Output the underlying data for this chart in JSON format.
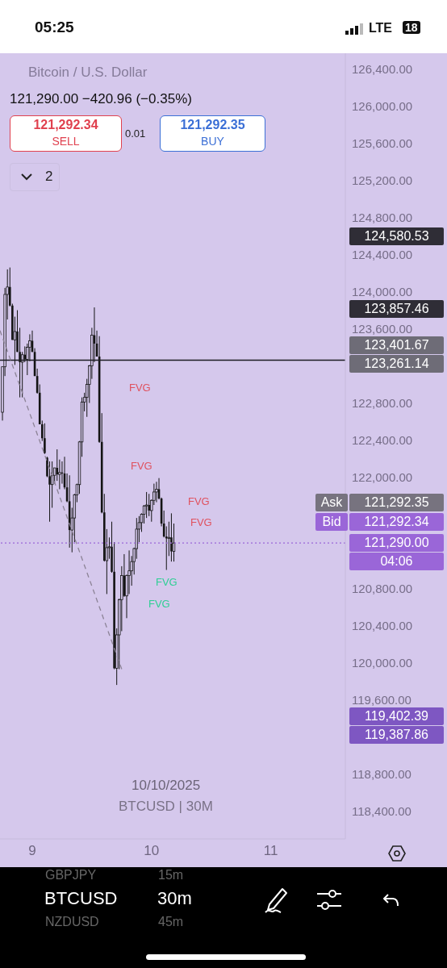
{
  "chart_data": {
    "type": "candlestick",
    "title": "Bitcoin / U.S. Dollar",
    "subtitle": "121,290.00 −420.96 (−0.35%)",
    "color": "#141414",
    "x": [
      "2025-10-08T18:00",
      "2025-10-08T18:30",
      "2025-10-08T19:00",
      "2025-10-08T19:30",
      "2025-10-08T20:00",
      "2025-10-08T20:30",
      "2025-10-08T21:00",
      "2025-10-08T21:30",
      "2025-10-08T22:00",
      "2025-10-08T22:30",
      "2025-10-08T23:00",
      "2025-10-08T23:30",
      "2025-10-09T00:00",
      "2025-10-09T00:30",
      "2025-10-09T01:00",
      "2025-10-09T01:30",
      "2025-10-09T02:00",
      "2025-10-09T02:30",
      "2025-10-09T03:00",
      "2025-10-09T03:30",
      "2025-10-09T04:00",
      "2025-10-09T04:30",
      "2025-10-09T05:00",
      "2025-10-09T05:30",
      "2025-10-09T06:00",
      "2025-10-09T06:30",
      "2025-10-09T07:00",
      "2025-10-09T07:30",
      "2025-10-09T08:00",
      "2025-10-09T08:30",
      "2025-10-09T09:00",
      "2025-10-09T09:30",
      "2025-10-09T10:00",
      "2025-10-09T10:30",
      "2025-10-09T11:00",
      "2025-10-09T11:30",
      "2025-10-09T12:00",
      "2025-10-09T12:30",
      "2025-10-09T13:00",
      "2025-10-09T13:30",
      "2025-10-09T14:00",
      "2025-10-09T14:30",
      "2025-10-09T15:00",
      "2025-10-09T15:30",
      "2025-10-09T16:00",
      "2025-10-09T16:30",
      "2025-10-09T17:00",
      "2025-10-09T17:30",
      "2025-10-09T18:00",
      "2025-10-09T18:30",
      "2025-10-09T19:00",
      "2025-10-09T19:30",
      "2025-10-09T20:00",
      "2025-10-09T20:30",
      "2025-10-09T21:00",
      "2025-10-09T21:30",
      "2025-10-09T22:00",
      "2025-10-09T22:30",
      "2025-10-09T23:00",
      "2025-10-09T23:30",
      "2025-10-10T00:00",
      "2025-10-10T00:30",
      "2025-10-10T01:00",
      "2025-10-10T01:30",
      "2025-10-10T02:00",
      "2025-10-10T02:30",
      "2025-10-10T03:00",
      "2025-10-10T03:30",
      "2025-10-10T04:00",
      "2025-10-10T04:30"
    ],
    "ohlc": [
      [
        122700,
        123190,
        122610,
        123190
      ],
      [
        123190,
        124040,
        123090,
        123970
      ],
      [
        123970,
        124240,
        123700,
        124050
      ],
      [
        124050,
        124260,
        123840,
        123850
      ],
      [
        123850,
        123870,
        123480,
        123480
      ],
      [
        123480,
        123730,
        123210,
        123570
      ],
      [
        123570,
        123800,
        123350,
        123350
      ],
      [
        123350,
        123610,
        122860,
        123240
      ],
      [
        123240,
        123350,
        122860,
        123320
      ],
      [
        123320,
        123410,
        123240,
        123270
      ],
      [
        123270,
        123440,
        123100,
        123400
      ],
      [
        123400,
        123540,
        123250,
        123470
      ],
      [
        123470,
        123580,
        123350,
        123350
      ],
      [
        123350,
        123390,
        123090,
        123090
      ],
      [
        123090,
        123170,
        122900,
        122910
      ],
      [
        122910,
        123000,
        122570,
        122570
      ],
      [
        122570,
        122610,
        122390,
        122420
      ],
      [
        122420,
        122580,
        122250,
        122260
      ],
      [
        122210,
        122220,
        122000,
        122010
      ],
      [
        122010,
        122170,
        121520,
        121920
      ],
      [
        121920,
        122170,
        121670,
        122020
      ],
      [
        122020,
        122100,
        121930,
        122100
      ],
      [
        122100,
        122300,
        121960,
        122030
      ],
      [
        122030,
        122190,
        121870,
        122050
      ],
      [
        122050,
        122170,
        121930,
        122040
      ],
      [
        122040,
        122220,
        121870,
        121890
      ],
      [
        121890,
        122040,
        121730,
        121740
      ],
      [
        121740,
        122020,
        121240,
        121430
      ],
      [
        121430,
        121670,
        121190,
        121560
      ],
      [
        121560,
        121820,
        121300,
        121810
      ],
      [
        121810,
        121930,
        121730,
        121920
      ],
      [
        121920,
        122390,
        121820,
        122380
      ],
      [
        122380,
        122860,
        122220,
        122810
      ],
      [
        122810,
        122910,
        122710,
        122860
      ],
      [
        122860,
        123060,
        122650,
        123000
      ],
      [
        123000,
        123210,
        122800,
        123200
      ],
      [
        123200,
        123610,
        123060,
        123530
      ],
      [
        123530,
        123830,
        123240,
        123440
      ],
      [
        123440,
        123580,
        123300,
        123300
      ],
      [
        123300,
        123520,
        122370,
        122380
      ],
      [
        122380,
        122690,
        121610,
        121620
      ],
      [
        121620,
        121820,
        121090,
        121100
      ],
      [
        121100,
        121440,
        120740,
        121240
      ],
      [
        121240,
        121350,
        121120,
        121250
      ],
      [
        121250,
        121520,
        120970,
        120980
      ],
      [
        120980,
        121300,
        119930,
        119940
      ],
      [
        119940,
        120370,
        119760,
        120300
      ],
      [
        120300,
        120690,
        119930,
        120680
      ],
      [
        120680,
        121040,
        120340,
        120940
      ],
      [
        120940,
        121170,
        120710,
        120720
      ],
      [
        120720,
        120950,
        120480,
        120940
      ],
      [
        120940,
        121210,
        120740,
        120990
      ],
      [
        120990,
        121150,
        120830,
        121090
      ],
      [
        121090,
        121240,
        120950,
        121230
      ],
      [
        121230,
        121560,
        121120,
        121440
      ],
      [
        121440,
        121580,
        121300,
        121510
      ],
      [
        121510,
        121610,
        121410,
        121600
      ],
      [
        121600,
        121700,
        121500,
        121690
      ],
      [
        121690,
        121840,
        121560,
        121700
      ],
      [
        121700,
        121820,
        121580,
        121640
      ],
      [
        121640,
        121760,
        121520,
        121750
      ],
      [
        121750,
        121930,
        121700,
        121840
      ],
      [
        121840,
        121950,
        121730,
        121870
      ],
      [
        121870,
        121990,
        121760,
        121770
      ],
      [
        121770,
        121780,
        121470,
        121500
      ],
      [
        121500,
        121640,
        121350,
        121360
      ],
      [
        121360,
        121470,
        121000,
        121340
      ],
      [
        121340,
        121520,
        121150,
        121350
      ],
      [
        121350,
        121610,
        121090,
        121200
      ],
      [
        121200,
        121500,
        121090,
        121290
      ]
    ],
    "series": [
      {
        "type": "line",
        "x": [
          "2025-10-08T17:30",
          "2025-10-09T18:00"
        ],
        "values": [
          123580,
          119930
        ],
        "color": "#8c8396",
        "line_style": "dashed"
      }
    ],
    "xlim": [
      "2025-10-08T17:30",
      "2025-10-11T15:00"
    ],
    "xticks": [
      {
        "value": "2025-10-09",
        "label": "9"
      },
      {
        "value": "2025-10-10",
        "label": "10"
      },
      {
        "value": "2025-10-11",
        "label": "11"
      }
    ],
    "ylim": [
      118100,
      126570
    ],
    "yticks": [
      {
        "value": 118400,
        "label": "118,400.00"
      },
      {
        "value": 118800,
        "label": "118,800.00"
      },
      {
        "value": 119600,
        "label": "119,600.00"
      },
      {
        "value": 120000,
        "label": "120,000.00"
      },
      {
        "value": 120400,
        "label": "120,400.00"
      },
      {
        "value": 120800,
        "label": "120,800.00"
      },
      {
        "value": 122000,
        "label": "122,000.00"
      },
      {
        "value": 122400,
        "label": "122,400.00"
      },
      {
        "value": 122800,
        "label": "122,800.00"
      },
      {
        "value": 123600,
        "label": "123,600.00"
      },
      {
        "value": 124000,
        "label": "124,000.00"
      },
      {
        "value": 124400,
        "label": "124,400.00"
      },
      {
        "value": 124800,
        "label": "124,800.00"
      },
      {
        "value": 125200,
        "label": "125,200.00"
      },
      {
        "value": 125600,
        "label": "125,600.00"
      },
      {
        "value": 126000,
        "label": "126,000.00"
      },
      {
        "value": 126400,
        "label": "126,400.00"
      }
    ],
    "ref_lines": [
      {
        "axis": "y",
        "value": 123261.14,
        "label": "123,261.14",
        "color": "#1c1c22",
        "line_style": "solid"
      },
      {
        "axis": "y",
        "value": 121290,
        "label": "121,290.00",
        "color": "#9a66d8",
        "line_style": "dotted"
      }
    ],
    "annotations": [
      "124,580.53",
      "123,857.46",
      "123,401.67",
      "Ask",
      "121,292.35",
      "Bid",
      "121,292.34",
      "04:06",
      "119,402.39",
      "119,387.86",
      "FVG",
      "FVG",
      "FVG",
      "FVG",
      "FVG",
      "FVG",
      "121,292.34",
      "SELL",
      "0.01",
      "121,292.35",
      "BUY",
      "2",
      "10/10/2025",
      "BTCUSD | 30M",
      "BTCUSD",
      "30m",
      "GBPJPY",
      "15m",
      "NZDUSD",
      "45m",
      "05:25",
      "LTE",
      "18"
    ]
  }
}
